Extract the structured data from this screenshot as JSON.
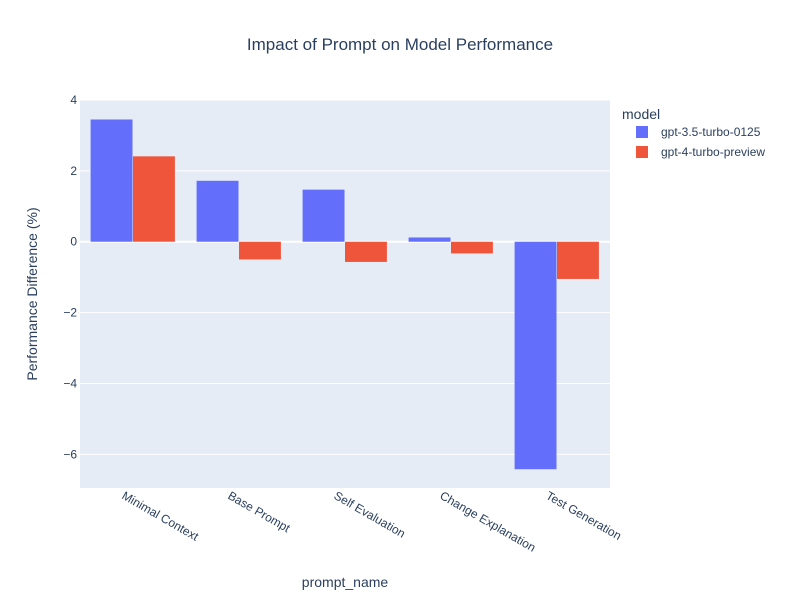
{
  "chart_data": {
    "type": "bar",
    "title": "Impact of Prompt on Model Performance",
    "xlabel": "prompt_name",
    "ylabel": "Performance Difference (%)",
    "categories": [
      "Minimal Context",
      "Base Prompt",
      "Self Evaluation",
      "Change Explanation",
      "Test Generation"
    ],
    "series": [
      {
        "name": "gpt-3.5-turbo-0125",
        "color": "#636efa",
        "values": [
          3.45,
          1.72,
          1.47,
          0.12,
          -6.42
        ]
      },
      {
        "name": "gpt-4-turbo-preview",
        "color": "#ef553b",
        "values": [
          2.41,
          -0.5,
          -0.57,
          -0.33,
          -1.05
        ]
      }
    ],
    "ylim": [
      -6.95,
      4.0
    ],
    "yticks": [
      4,
      2,
      0,
      -2,
      -4,
      -6
    ],
    "ytick_labels": [
      "4",
      "2",
      "0",
      "−2",
      "−4",
      "−6"
    ],
    "legend": {
      "title": "model",
      "position": "right"
    },
    "grid": true,
    "plot_background": "#e5ecf6"
  }
}
